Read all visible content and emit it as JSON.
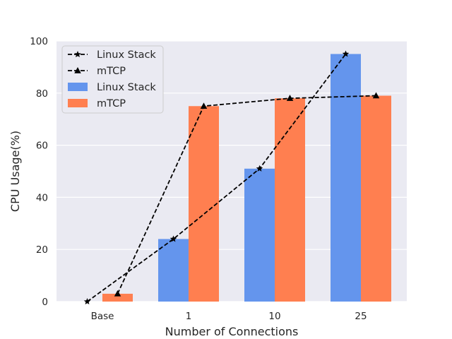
{
  "chart_data": {
    "type": "bar",
    "categories": [
      "Base",
      "1",
      "10",
      "25"
    ],
    "xlabel": "Number of Connections",
    "ylabel": "CPU Usage(%)",
    "ylim": [
      0,
      100
    ],
    "yticks": [
      0,
      20,
      40,
      60,
      80,
      100
    ],
    "grid": true,
    "legend_position": "upper-left",
    "bars": [
      {
        "name": "Linux Stack",
        "color": "#6495ED",
        "values": [
          0,
          24,
          51,
          95
        ]
      },
      {
        "name": "mTCP",
        "color": "#FF7F50",
        "values": [
          3,
          75,
          78,
          79
        ]
      }
    ],
    "lines": [
      {
        "name": "Linux Stack",
        "marker": "star",
        "color": "#000000",
        "style": "dashed",
        "values": [
          0,
          24,
          51,
          95
        ]
      },
      {
        "name": "mTCP",
        "marker": "triangle",
        "color": "#000000",
        "style": "dashed",
        "values": [
          3,
          75,
          78,
          79
        ]
      }
    ],
    "legend": [
      "Linux Stack",
      "mTCP",
      "Linux Stack",
      "mTCP"
    ]
  }
}
